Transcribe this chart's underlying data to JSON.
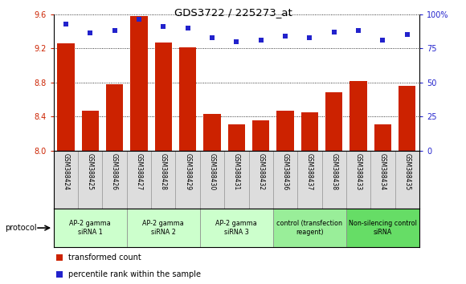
{
  "title": "GDS3722 / 225273_at",
  "samples": [
    "GSM388424",
    "GSM388425",
    "GSM388426",
    "GSM388427",
    "GSM388428",
    "GSM388429",
    "GSM388430",
    "GSM388431",
    "GSM388432",
    "GSM388436",
    "GSM388437",
    "GSM388438",
    "GSM388433",
    "GSM388434",
    "GSM388435"
  ],
  "transformed_count": [
    9.26,
    8.47,
    8.78,
    9.58,
    9.27,
    9.21,
    8.43,
    8.31,
    8.35,
    8.47,
    8.45,
    8.68,
    8.82,
    8.31,
    8.76
  ],
  "percentile_rank": [
    93,
    86,
    88,
    96,
    91,
    90,
    83,
    80,
    81,
    84,
    83,
    87,
    88,
    81,
    85
  ],
  "groups": [
    {
      "label": "AP-2 gamma\nsiRNA 1",
      "indices": [
        0,
        1,
        2
      ],
      "color": "#ccffcc"
    },
    {
      "label": "AP-2 gamma\nsiRNA 2",
      "indices": [
        3,
        4,
        5
      ],
      "color": "#ccffcc"
    },
    {
      "label": "AP-2 gamma\nsiRNA 3",
      "indices": [
        6,
        7,
        8
      ],
      "color": "#ccffcc"
    },
    {
      "label": "control (transfection\nreagent)",
      "indices": [
        9,
        10,
        11
      ],
      "color": "#99ee99"
    },
    {
      "label": "Non-silencing control\nsiRNA",
      "indices": [
        12,
        13,
        14
      ],
      "color": "#66dd66"
    }
  ],
  "bar_color": "#cc2200",
  "dot_color": "#2222cc",
  "ylim_left": [
    8.0,
    9.6
  ],
  "yticks_left": [
    8.0,
    8.4,
    8.8,
    9.2,
    9.6
  ],
  "ylim_right": [
    0,
    100
  ],
  "yticks_right": [
    0,
    25,
    50,
    75,
    100
  ],
  "protocol_label": "protocol",
  "legend1": "transformed count",
  "legend2": "percentile rank within the sample",
  "background_color": "#ffffff"
}
